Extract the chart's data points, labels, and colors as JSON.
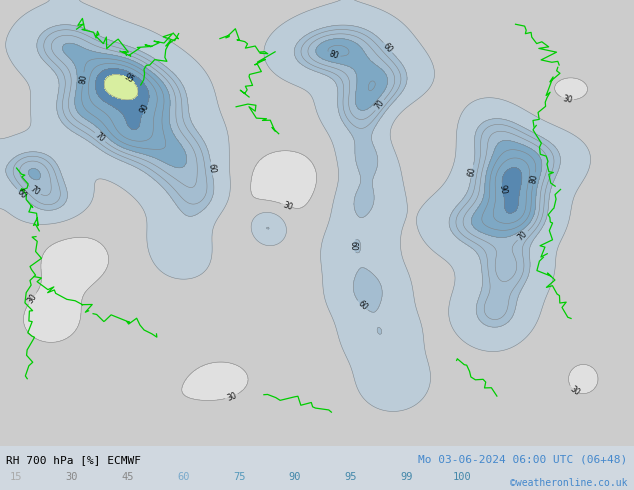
{
  "title_left": "RH 700 hPa [%] ECMWF",
  "title_right": "Mo 03-06-2024 06:00 UTC (06+48)",
  "credit": "©weatheronline.co.uk",
  "legend_values": [
    15,
    30,
    45,
    60,
    75,
    90,
    95,
    99,
    100
  ],
  "fill_colors": [
    "#f5f5f5",
    "#e0e0e0",
    "#c8c8c8",
    "#b8ccd8",
    "#9ab8d4",
    "#7aa4cc",
    "#5588b8",
    "#d8eea0",
    "#b8dc80"
  ],
  "levels": [
    0,
    15,
    30,
    45,
    60,
    75,
    90,
    95,
    99,
    110
  ],
  "contour_color": "#888888",
  "coast_color": "#00cc00",
  "text_color_left": "#000000",
  "text_color_right": "#4488cc",
  "credit_color": "#4488cc",
  "bottom_bg": "#ffffff",
  "map_bg": "#d0d8e0",
  "fig_width": 6.34,
  "fig_height": 4.9,
  "dpi": 100
}
